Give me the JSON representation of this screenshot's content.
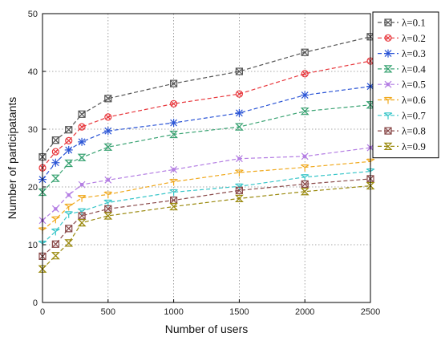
{
  "chart_data": {
    "type": "line",
    "xlabel": "Number of users",
    "ylabel": "Number of participatants",
    "xlim": [
      0,
      2500
    ],
    "ylim": [
      0,
      50
    ],
    "x_ticks": [
      "0",
      "500",
      "1000",
      "1500",
      "2000",
      "2500"
    ],
    "y_ticks": [
      "0",
      "10",
      "20",
      "30",
      "40",
      "50"
    ],
    "grid": true,
    "legend_position": "top-right",
    "x": [
      0,
      100,
      200,
      300,
      500,
      1000,
      1500,
      2000,
      2500
    ],
    "series": [
      {
        "name": "λ=0.1",
        "color": "#555555",
        "marker": "square-x",
        "values": [
          25.2,
          28.1,
          29.9,
          32.6,
          35.3,
          37.9,
          40.0,
          43.3,
          46.0
        ]
      },
      {
        "name": "λ=0.2",
        "color": "#e8383d",
        "marker": "circle-x",
        "values": [
          23.3,
          26.1,
          28.0,
          30.4,
          32.1,
          34.4,
          36.1,
          39.6,
          41.8
        ]
      },
      {
        "name": "λ=0.3",
        "color": "#2b55d6",
        "marker": "star",
        "values": [
          21.3,
          24.2,
          26.4,
          27.8,
          29.7,
          31.1,
          32.8,
          35.9,
          37.4
        ]
      },
      {
        "name": "λ=0.4",
        "color": "#3aa373",
        "marker": "hourglass",
        "values": [
          19.1,
          21.5,
          24.1,
          25.1,
          26.9,
          29.1,
          30.4,
          33.1,
          34.2
        ]
      },
      {
        "name": "λ=0.5",
        "color": "#b47ee3",
        "marker": "x",
        "values": [
          14.2,
          16.2,
          18.6,
          20.4,
          21.2,
          23.0,
          24.9,
          25.3,
          26.8
        ]
      },
      {
        "name": "λ=0.6",
        "color": "#f0a91e",
        "marker": "y-down",
        "values": [
          12.5,
          14.4,
          16.6,
          18.1,
          18.7,
          20.9,
          22.5,
          23.4,
          24.4
        ]
      },
      {
        "name": "λ=0.7",
        "color": "#39c6c9",
        "marker": "y-down",
        "values": [
          10.2,
          12.3,
          15.3,
          15.8,
          17.3,
          19.1,
          20.1,
          21.7,
          22.7
        ]
      },
      {
        "name": "λ=0.8",
        "color": "#8a4a4a",
        "marker": "square-x",
        "values": [
          8.0,
          10.1,
          12.8,
          15.0,
          16.2,
          17.7,
          19.4,
          20.5,
          21.4
        ]
      },
      {
        "name": "λ=0.9",
        "color": "#9b8a0f",
        "marker": "hourglass",
        "values": [
          5.8,
          8.1,
          10.3,
          13.8,
          15.0,
          16.6,
          18.0,
          19.2,
          20.2
        ]
      }
    ]
  }
}
